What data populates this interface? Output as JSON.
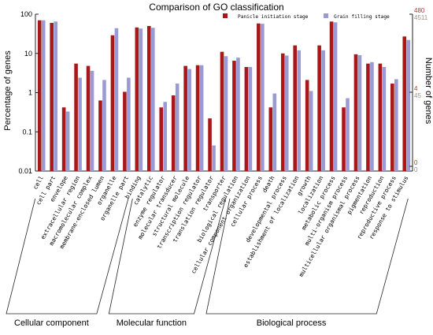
{
  "chart_data": {
    "type": "bar",
    "title": "Comparison of GO classification",
    "ylabel_left": "Percentage of genes",
    "ylabel_right": "Number of genes",
    "y_scale": "log",
    "ylim": [
      0.01,
      100
    ],
    "left_ticks": [
      "0.01",
      "0.1",
      "1",
      "10",
      "100"
    ],
    "right_ticks_a": [
      "480",
      "4",
      "0"
    ],
    "right_ticks_b": [
      "4511",
      "45",
      "0"
    ],
    "colors": {
      "series_a": "#a81818",
      "series_b": "#9a9ad4",
      "axis": "#222222",
      "right_a": "#a0452e",
      "right_b": "#9a8f86"
    },
    "series": [
      {
        "name": "Panicle initiation stage",
        "values": [
          70,
          60,
          0.42,
          5.5,
          4.8,
          0.63,
          29,
          1.05,
          46,
          50,
          0.42,
          0.85,
          4.8,
          5,
          0.22,
          11,
          6.5,
          4.5,
          58,
          0.42,
          10,
          16,
          2.1,
          16,
          65,
          0.42,
          9.5,
          5.5,
          5.5,
          1.7,
          27
        ]
      },
      {
        "name": "Grain filling stage",
        "values": [
          70,
          65,
          0.33,
          2.4,
          3.6,
          2.1,
          44,
          2.4,
          43,
          45,
          0.58,
          1.7,
          4,
          5,
          0.045,
          8.5,
          7.8,
          4.5,
          57,
          0.95,
          8.8,
          12,
          1.1,
          12,
          62,
          0.72,
          9,
          6,
          4.5,
          2.2,
          22
        ]
      }
    ],
    "categories": [
      "cell",
      "cell part",
      "envelope",
      "extracellular region",
      "macromolecular complex",
      "membrane-enclosed lumen",
      "organelle",
      "organelle part",
      "binding",
      "catalytic",
      "enzyme regulator",
      "molecular transducer",
      "structural molecule",
      "transcription regulator",
      "translation regulator",
      "transporter",
      "biological regulation",
      "cellular component organization",
      "cellular process",
      "death",
      "developmental process",
      "establishment of localization",
      "growth",
      "localization",
      "metabolic process",
      "multi-organism process",
      "multicellular organismal process",
      "pigmentation",
      "reproduction",
      "reproductive process",
      "response to stimulus"
    ],
    "groups": [
      {
        "name": "Cellular component",
        "from": 0,
        "to": 7
      },
      {
        "name": "Molecular function",
        "from": 8,
        "to": 15
      },
      {
        "name": "Biological process",
        "from": 16,
        "to": 30
      }
    ]
  }
}
